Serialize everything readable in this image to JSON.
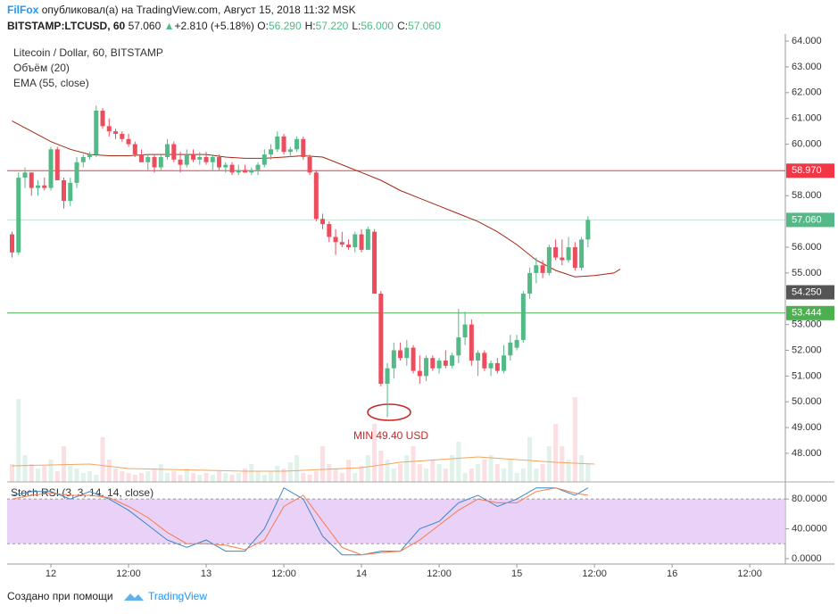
{
  "header": {
    "author": "FilFox",
    "published": "опубликовал(а) на TradingView.com, Август 15, 2018 11:32 MSK",
    "symbol": "BITSTAMP:LTCUSD, 60",
    "last": "57.060",
    "arrow": "▲",
    "change": "+2.810 (+5.18%)",
    "ohlc": [
      [
        "O:",
        "56.290"
      ],
      [
        "H:",
        "57.220"
      ],
      [
        "L:",
        "56.000"
      ],
      [
        "C:",
        "57.060"
      ]
    ]
  },
  "footer": {
    "text": "Создано при помощи",
    "brand": "TradingView"
  },
  "chart_data": {
    "type": "candlestick",
    "title": "Litecoin / Dollar, 60, BITSTAMP",
    "volume_title": "Объём (20)",
    "ema_title": "EMA (55, close)",
    "annotation": "MIN 49.40 USD",
    "up_color": "#53b987",
    "down_color": "#eb4d5c",
    "x": [
      -6,
      -5,
      -4,
      -3,
      -2,
      -1,
      0,
      1,
      2,
      3,
      4,
      5,
      6,
      7,
      8,
      9,
      10,
      11,
      12,
      13,
      14,
      15,
      16,
      17,
      18,
      19,
      20,
      21,
      22,
      23,
      24,
      25,
      26,
      27,
      28,
      29,
      30,
      31,
      32,
      33,
      34,
      35,
      36,
      37,
      38,
      39,
      40,
      41,
      42,
      43,
      44,
      45,
      46,
      47,
      48,
      49,
      50,
      51,
      52,
      53,
      54,
      55,
      56,
      57,
      58,
      59,
      60,
      61,
      62,
      63,
      64,
      65,
      66,
      67,
      68,
      69,
      70,
      71,
      72,
      73,
      74,
      75,
      76,
      77,
      78,
      79,
      80,
      81,
      82,
      83
    ],
    "series": [
      {
        "name": "LTCUSD",
        "values": [
          [
            56.5,
            56.6,
            55.6,
            55.8
          ],
          [
            55.8,
            58.9,
            55.7,
            58.7
          ],
          [
            58.7,
            59.1,
            58.3,
            58.9
          ],
          [
            58.9,
            58.9,
            58.0,
            58.3
          ],
          [
            58.3,
            58.6,
            58.0,
            58.4
          ],
          [
            58.4,
            58.7,
            58.2,
            58.3
          ],
          [
            58.3,
            59.9,
            58.2,
            59.8
          ],
          [
            59.8,
            59.9,
            58.6,
            58.6
          ],
          [
            58.6,
            58.7,
            57.5,
            57.8
          ],
          [
            57.8,
            58.7,
            57.6,
            58.5
          ],
          [
            58.5,
            59.5,
            58.3,
            59.3
          ],
          [
            59.3,
            59.6,
            59.1,
            59.5
          ],
          [
            59.5,
            59.7,
            59.4,
            59.6
          ],
          [
            59.6,
            61.5,
            59.5,
            61.3
          ],
          [
            61.3,
            61.4,
            60.6,
            60.7
          ],
          [
            60.7,
            61.0,
            60.3,
            60.5
          ],
          [
            60.5,
            60.6,
            60.2,
            60.4
          ],
          [
            60.4,
            60.5,
            60.1,
            60.2
          ],
          [
            60.2,
            60.4,
            59.9,
            60.0
          ],
          [
            60.0,
            60.1,
            59.5,
            59.6
          ],
          [
            59.6,
            59.8,
            59.3,
            59.3
          ],
          [
            59.3,
            59.6,
            59.0,
            59.5
          ],
          [
            59.5,
            59.6,
            58.9,
            59.1
          ],
          [
            59.1,
            59.6,
            59.0,
            59.5
          ],
          [
            59.5,
            60.2,
            59.4,
            60.0
          ],
          [
            60.0,
            60.1,
            59.3,
            59.4
          ],
          [
            59.4,
            59.7,
            58.9,
            59.2
          ],
          [
            59.2,
            59.8,
            59.1,
            59.6
          ],
          [
            59.6,
            59.8,
            59.3,
            59.4
          ],
          [
            59.4,
            59.7,
            59.2,
            59.5
          ],
          [
            59.5,
            59.7,
            59.2,
            59.3
          ],
          [
            59.3,
            59.6,
            59.0,
            59.5
          ],
          [
            59.5,
            59.6,
            59.0,
            59.1
          ],
          [
            59.1,
            59.3,
            58.9,
            59.2
          ],
          [
            59.2,
            59.3,
            58.8,
            58.9
          ],
          [
            58.9,
            59.2,
            58.8,
            59.0
          ],
          [
            59.0,
            59.2,
            58.9,
            58.9
          ],
          [
            58.9,
            59.1,
            58.8,
            59.0
          ],
          [
            59.0,
            59.3,
            58.8,
            59.2
          ],
          [
            59.2,
            59.8,
            59.1,
            59.6
          ],
          [
            59.6,
            60.0,
            59.4,
            59.8
          ],
          [
            59.8,
            60.5,
            59.7,
            60.3
          ],
          [
            60.3,
            60.4,
            59.6,
            59.7
          ],
          [
            59.7,
            59.9,
            59.5,
            59.8
          ],
          [
            59.8,
            60.3,
            59.7,
            60.2
          ],
          [
            60.2,
            60.3,
            59.4,
            59.5
          ],
          [
            59.5,
            59.6,
            58.8,
            58.9
          ],
          [
            58.9,
            59.0,
            57.0,
            57.1
          ],
          [
            57.1,
            57.3,
            56.7,
            56.9
          ],
          [
            56.9,
            57.0,
            56.2,
            56.4
          ],
          [
            56.4,
            56.7,
            55.7,
            56.2
          ],
          [
            56.2,
            56.6,
            56.0,
            56.1
          ],
          [
            56.1,
            56.3,
            55.9,
            56.0
          ],
          [
            56.0,
            56.6,
            55.8,
            56.5
          ],
          [
            56.5,
            56.7,
            55.8,
            55.9
          ],
          [
            55.9,
            56.8,
            55.9,
            56.7
          ],
          [
            56.6,
            56.7,
            54.2,
            54.2
          ],
          [
            54.2,
            54.3,
            50.6,
            50.7
          ],
          [
            50.7,
            51.5,
            49.4,
            51.3
          ],
          [
            51.3,
            52.3,
            50.9,
            52.0
          ],
          [
            52.0,
            52.3,
            51.6,
            51.7
          ],
          [
            51.7,
            52.4,
            51.4,
            52.1
          ],
          [
            52.1,
            52.2,
            51.1,
            51.2
          ],
          [
            51.2,
            51.8,
            50.7,
            51.0
          ],
          [
            51.0,
            51.8,
            50.8,
            51.7
          ],
          [
            51.7,
            51.8,
            51.2,
            51.3
          ],
          [
            51.3,
            51.7,
            51.1,
            51.6
          ],
          [
            51.6,
            52.0,
            51.3,
            51.4
          ],
          [
            51.4,
            51.9,
            51.3,
            51.8
          ],
          [
            51.8,
            53.6,
            51.5,
            52.5
          ],
          [
            52.5,
            53.5,
            52.2,
            53.0
          ],
          [
            53.0,
            53.2,
            51.4,
            51.6
          ],
          [
            51.6,
            52.0,
            51.0,
            51.9
          ],
          [
            51.9,
            52.0,
            51.2,
            51.3
          ],
          [
            51.3,
            51.6,
            51.0,
            51.5
          ],
          [
            51.5,
            51.7,
            51.1,
            51.2
          ],
          [
            51.2,
            52.2,
            51.1,
            51.8
          ],
          [
            51.8,
            52.6,
            51.6,
            52.3
          ],
          [
            52.1,
            52.6,
            52.0,
            52.4
          ],
          [
            52.4,
            54.3,
            52.3,
            54.2
          ],
          [
            54.2,
            55.2,
            54.0,
            55.0
          ],
          [
            55.0,
            55.6,
            54.6,
            55.3
          ],
          [
            55.3,
            55.5,
            54.8,
            55.0
          ],
          [
            55.0,
            56.1,
            54.9,
            56.0
          ],
          [
            56.0,
            56.3,
            55.5,
            55.6
          ],
          [
            55.6,
            56.3,
            55.3,
            55.5
          ],
          [
            55.5,
            56.4,
            55.4,
            56.0
          ],
          [
            56.0,
            56.2,
            55.1,
            55.2
          ],
          [
            55.2,
            56.4,
            55.1,
            56.3
          ],
          [
            56.3,
            57.2,
            56.0,
            57.06
          ]
        ]
      }
    ],
    "volume": [
      20,
      93,
      30,
      20,
      15,
      18,
      25,
      12,
      40,
      18,
      15,
      10,
      12,
      8,
      50,
      25,
      15,
      12,
      10,
      8,
      10,
      12,
      15,
      20,
      10,
      12,
      8,
      15,
      10,
      8,
      10,
      8,
      12,
      10,
      8,
      10,
      15,
      20,
      12,
      8,
      12,
      18,
      15,
      22,
      30,
      10,
      8,
      12,
      40,
      20,
      15,
      10,
      25,
      10,
      18,
      30,
      65,
      35,
      25,
      15,
      20,
      30,
      40,
      20,
      15,
      25,
      20,
      15,
      30,
      45,
      10,
      15,
      20,
      25,
      30,
      20,
      15,
      25,
      10,
      15,
      50,
      15,
      20,
      40,
      65,
      40,
      25,
      95,
      30,
      20
    ],
    "vlim": [
      0,
      100
    ],
    "volume_ma": {
      "color": "#f4a460",
      "x": [
        -6,
        0,
        6,
        12,
        18,
        24,
        30,
        36,
        42,
        48,
        54,
        60,
        66,
        72,
        78,
        84
      ],
      "values": [
        18,
        19,
        20,
        15,
        14,
        13,
        12,
        12,
        14,
        16,
        22,
        25,
        28,
        25,
        22,
        20
      ]
    },
    "ema": {
      "color": "#a52714",
      "x": [
        -6,
        -3,
        0,
        3,
        6,
        9,
        12,
        15,
        18,
        21,
        24,
        27,
        30,
        33,
        36,
        39,
        42,
        45,
        48,
        51,
        54,
        57,
        60,
        63,
        66,
        69,
        72,
        75,
        78,
        81,
        84,
        87,
        88
      ],
      "values": [
        60.9,
        60.5,
        60.1,
        59.8,
        59.6,
        59.55,
        59.55,
        59.6,
        59.6,
        59.6,
        59.6,
        59.5,
        59.45,
        59.45,
        59.5,
        59.55,
        59.5,
        59.2,
        58.9,
        58.6,
        58.2,
        57.9,
        57.6,
        57.3,
        57.0,
        56.6,
        56.1,
        55.5,
        55.1,
        54.85,
        54.9,
        55.0,
        55.15
      ]
    },
    "levels": [
      {
        "value": 58.97,
        "label": "58.970",
        "color": "#f23645",
        "line": true
      },
      {
        "value": 57.06,
        "label": "57.060",
        "color": "#53b987",
        "line": true
      },
      {
        "value": 54.25,
        "label": "54.250",
        "color": "#555555",
        "line": false
      },
      {
        "value": 53.444,
        "label": "53.444",
        "color": "#4caf50",
        "line": true
      }
    ],
    "xlim": [
      -6.76,
      113.5
    ],
    "ylim": [
      46.89,
      64.28
    ],
    "grid": false,
    "yticks": [
      {
        "value": 48,
        "label": "48.000"
      },
      {
        "value": 49,
        "label": "49.000"
      },
      {
        "value": 50,
        "label": "50.000"
      },
      {
        "value": 51,
        "label": "51.000"
      },
      {
        "value": 52,
        "label": "52.000"
      },
      {
        "value": 53,
        "label": "53.000"
      },
      {
        "value": 55,
        "label": "55.000"
      },
      {
        "value": 56,
        "label": "56.000"
      },
      {
        "value": 58,
        "label": "58.000"
      },
      {
        "value": 60,
        "label": "60.000"
      },
      {
        "value": 61,
        "label": "61.000"
      },
      {
        "value": 62,
        "label": "62.000"
      },
      {
        "value": 63,
        "label": "63.000"
      },
      {
        "value": 64,
        "label": "64.000"
      }
    ],
    "xticks": [
      {
        "value": 0,
        "label": "12"
      },
      {
        "value": 12,
        "label": "12:00"
      },
      {
        "value": 24,
        "label": "13"
      },
      {
        "value": 36,
        "label": "12:00"
      },
      {
        "value": 48,
        "label": "14"
      },
      {
        "value": 60,
        "label": "12:00"
      },
      {
        "value": 72,
        "label": "15"
      },
      {
        "value": 84,
        "label": "12:00"
      },
      {
        "value": 96,
        "label": "16"
      },
      {
        "value": 108,
        "label": "12:00"
      }
    ],
    "stoch_rsi": {
      "title": "Stoch RSI (3, 3, 14, 14, close)",
      "ylim": [
        -7.3,
        103
      ],
      "band": [
        20,
        80
      ],
      "band_color": "#e4c6f5",
      "yticks": [
        {
          "value": 80,
          "label": "80.0000"
        },
        {
          "value": 40,
          "label": "40.0000"
        },
        {
          "value": 0,
          "label": "0.0000"
        }
      ],
      "x": [
        -6,
        -3,
        0,
        3,
        6,
        9,
        12,
        15,
        18,
        21,
        24,
        27,
        30,
        33,
        36,
        39,
        42,
        45,
        48,
        51,
        54,
        57,
        60,
        63,
        66,
        69,
        72,
        75,
        78,
        81,
        83
      ],
      "series": [
        {
          "name": "K",
          "color": "#3d85c6",
          "values": [
            85,
            90,
            90,
            80,
            90,
            80,
            65,
            45,
            25,
            15,
            25,
            10,
            10,
            40,
            95,
            80,
            30,
            5,
            5,
            10,
            10,
            40,
            50,
            75,
            85,
            70,
            80,
            95,
            95,
            85,
            95
          ]
        },
        {
          "name": "D",
          "color": "#f57c4b",
          "values": [
            80,
            85,
            88,
            85,
            85,
            82,
            70,
            55,
            35,
            20,
            20,
            18,
            12,
            25,
            70,
            85,
            50,
            15,
            5,
            8,
            10,
            25,
            45,
            65,
            80,
            75,
            75,
            90,
            95,
            88,
            85
          ]
        }
      ]
    }
  }
}
